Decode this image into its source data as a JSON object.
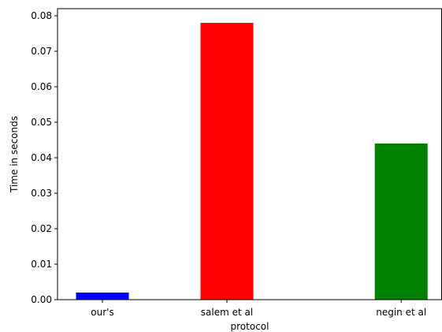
{
  "chart_data": {
    "type": "bar",
    "categories": [
      "our's",
      "salem et al",
      "negin et al"
    ],
    "x": [
      0,
      1,
      2
    ],
    "category_positions": [
      0,
      1,
      2.4
    ],
    "values": [
      0.002,
      0.078,
      0.044
    ],
    "colors": [
      "#0000ff",
      "#ff0000",
      "#008000"
    ],
    "title": "",
    "xlabel": "protocol",
    "ylabel": "Time in seconds",
    "ylim": [
      0,
      0.082
    ],
    "yticks": [
      0.0,
      0.01,
      0.02,
      0.03,
      0.04,
      0.05,
      0.06,
      0.07,
      0.08
    ],
    "ytick_labels": [
      "0.00",
      "0.01",
      "0.02",
      "0.03",
      "0.04",
      "0.05",
      "0.06",
      "0.07",
      "0.08"
    ],
    "grid": false,
    "legend": "none"
  }
}
